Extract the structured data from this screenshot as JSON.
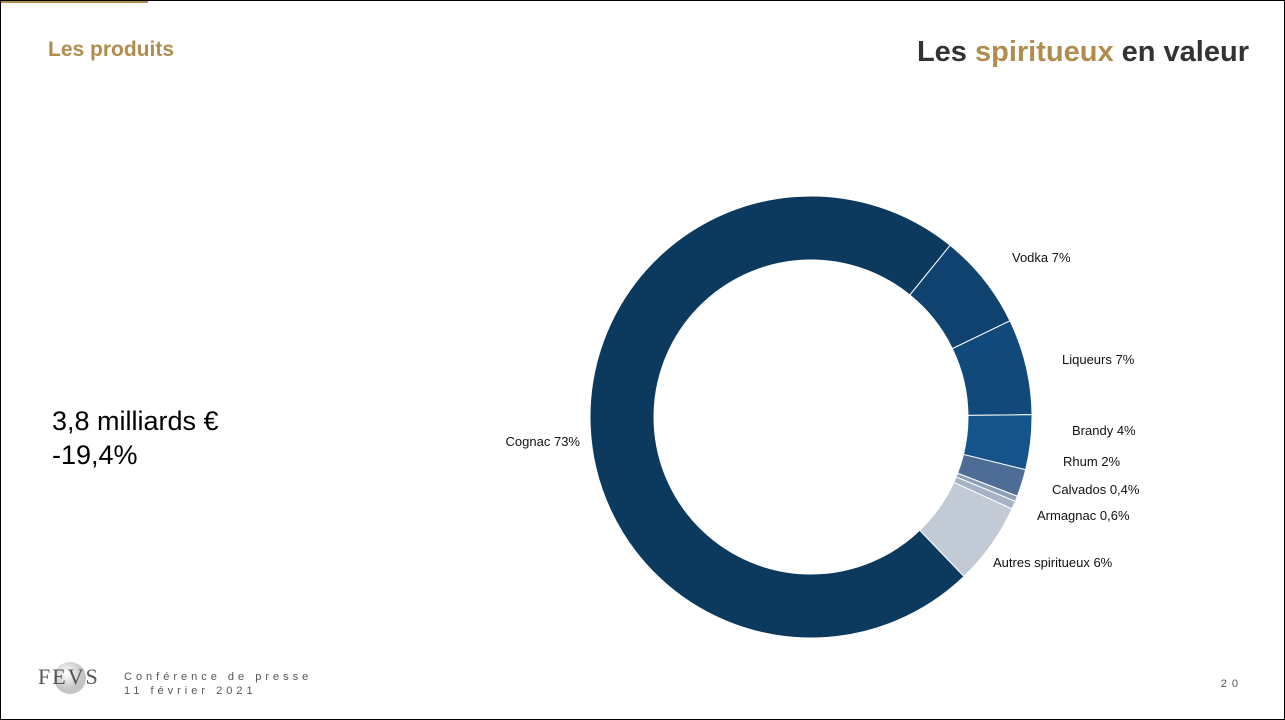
{
  "header": {
    "section": "Les produits",
    "title": [
      "Les ",
      "spiritueux",
      " en valeur"
    ]
  },
  "kpi": {
    "amount": "3,8 milliards €",
    "change": "-19,4%"
  },
  "footer": {
    "logo": "FEVS",
    "event": "Conférence de presse",
    "date": "11 février 2021",
    "page": "20"
  },
  "chart_data": {
    "type": "pie",
    "donut": true,
    "categories": [
      "Vodka",
      "Liqueurs",
      "Brandy",
      "Rhum",
      "Calvados",
      "Armagnac",
      "Autres spiritueux",
      "Cognac"
    ],
    "values": [
      7,
      7,
      4,
      2,
      0.4,
      0.6,
      6,
      73
    ],
    "value_labels": [
      "7%",
      "7%",
      "4%",
      "2%",
      "0,4%",
      "0,6%",
      "6%",
      "73%"
    ],
    "colors": [
      "#0f426e",
      "#114a7a",
      "#15548a",
      "#4d6c96",
      "#8d9fb8",
      "#a6b3c6",
      "#c2cad6",
      "#0b3a5e"
    ]
  }
}
